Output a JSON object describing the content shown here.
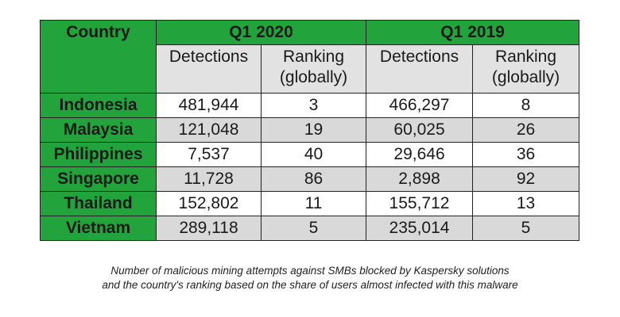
{
  "chart_data": {
    "type": "table",
    "columns": {
      "country": "Country",
      "periods": [
        "Q1 2020",
        "Q1 2019"
      ],
      "detections": "Detections",
      "ranking_line1": "Ranking",
      "ranking_line2": "(globally)"
    },
    "rows": [
      {
        "country": "Indonesia",
        "det_2020": "481,944",
        "rank_2020": "3",
        "det_2019": "466,297",
        "rank_2019": "8"
      },
      {
        "country": "Malaysia",
        "det_2020": "121,048",
        "rank_2020": "19",
        "det_2019": "60,025",
        "rank_2019": "26"
      },
      {
        "country": "Philippines",
        "det_2020": "7,537",
        "rank_2020": "40",
        "det_2019": "29,646",
        "rank_2019": "36"
      },
      {
        "country": "Singapore",
        "det_2020": "11,728",
        "rank_2020": "86",
        "det_2019": "2,898",
        "rank_2019": "92"
      },
      {
        "country": "Thailand",
        "det_2020": "152,802",
        "rank_2020": "11",
        "det_2019": "155,712",
        "rank_2019": "13"
      },
      {
        "country": "Vietnam",
        "det_2020": "289,118",
        "rank_2020": "5",
        "det_2019": "235,014",
        "rank_2019": "5"
      }
    ]
  },
  "caption": {
    "line1": "Number of malicious mining attempts against SMBs blocked by Kaspersky solutions",
    "line2": "and the country's ranking based on the share of users almost infected with this malware"
  },
  "colors": {
    "header_green": "#22a33c",
    "subheader_gray": "#e2e2e2",
    "row_alt_gray": "#d9d9d9"
  }
}
